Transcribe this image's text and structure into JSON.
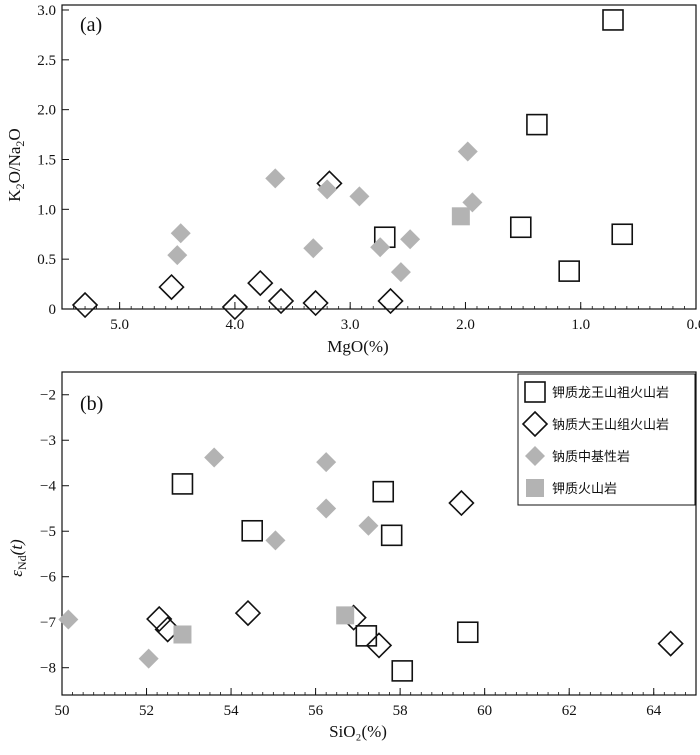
{
  "chart_data": [
    {
      "type": "scatter",
      "panel_label": "(a)",
      "xlabel": "MgO(%)",
      "ylabel": "K2O/Na2O",
      "xlim": [
        5.5,
        0.0
      ],
      "ylim": [
        0,
        3.05
      ],
      "x_reversed": true,
      "xticks": [
        5.0,
        4.0,
        3.0,
        2.0,
        1.0,
        0.0
      ],
      "xtick_labels": [
        "5.0",
        "4.0",
        "3.0",
        "2.0",
        "1.0",
        "0.0"
      ],
      "yticks": [
        0,
        0.5,
        1.0,
        1.5,
        2.0,
        2.5,
        3.0
      ],
      "ytick_labels": [
        "0",
        "0.5",
        "1.0",
        "1.5",
        "2.0",
        "2.5",
        "3.0"
      ],
      "series": [
        {
          "name": "钾质龙王山祖火山岩",
          "marker": "open-square",
          "points": [
            [
              0.72,
              2.9
            ],
            [
              1.38,
              1.85
            ],
            [
              0.64,
              0.75
            ],
            [
              1.52,
              0.82
            ],
            [
              2.7,
              0.72
            ],
            [
              1.1,
              0.38
            ]
          ]
        },
        {
          "name": "钠质大王山组火山岩",
          "marker": "open-diamond",
          "points": [
            [
              5.3,
              0.04
            ],
            [
              4.55,
              0.22
            ],
            [
              4.0,
              0.02
            ],
            [
              3.78,
              0.26
            ],
            [
              3.6,
              0.08
            ],
            [
              3.3,
              0.06
            ],
            [
              3.18,
              1.26
            ],
            [
              2.65,
              0.08
            ]
          ]
        },
        {
          "name": "钠质中基性岩",
          "marker": "gray-diamond",
          "points": [
            [
              4.47,
              0.76
            ],
            [
              4.5,
              0.54
            ],
            [
              3.65,
              1.31
            ],
            [
              3.2,
              1.2
            ],
            [
              3.32,
              0.61
            ],
            [
              2.92,
              1.13
            ],
            [
              2.74,
              0.62
            ],
            [
              2.48,
              0.7
            ],
            [
              2.56,
              0.37
            ],
            [
              1.98,
              1.58
            ],
            [
              1.94,
              1.07
            ]
          ]
        },
        {
          "name": "钾质火山岩",
          "marker": "gray-square",
          "points": [
            [
              2.04,
              0.93
            ]
          ]
        }
      ]
    },
    {
      "type": "scatter",
      "panel_label": "(b)",
      "xlabel": "SiO₂(%)",
      "ylabel_main": "ε",
      "ylabel_sub": "Nd",
      "ylabel_suffix": "(t)",
      "xlim": [
        50,
        65
      ],
      "ylim": [
        -8.6,
        -1.5
      ],
      "xticks": [
        50,
        52,
        54,
        56,
        58,
        60,
        62,
        64
      ],
      "xtick_labels": [
        "50",
        "52",
        "54",
        "56",
        "58",
        "60",
        "62",
        "64"
      ],
      "yticks": [
        -2,
        -3,
        -4,
        -5,
        -6,
        -7,
        -8
      ],
      "ytick_labels": [
        "−2",
        "−3",
        "−4",
        "−5",
        "−6",
        "−7",
        "−8"
      ],
      "legend_position": "top-right",
      "series": [
        {
          "name": "钾质龙王山祖火山岩",
          "marker": "open-square",
          "points": [
            [
              52.85,
              -3.96
            ],
            [
              54.5,
              -4.99
            ],
            [
              57.6,
              -4.13
            ],
            [
              57.8,
              -5.09
            ],
            [
              57.2,
              -7.3
            ],
            [
              59.6,
              -7.22
            ],
            [
              58.05,
              -8.07
            ]
          ]
        },
        {
          "name": "钠质大王山组火山岩",
          "marker": "open-diamond",
          "points": [
            [
              52.3,
              -6.93
            ],
            [
              52.5,
              -7.16
            ],
            [
              54.4,
              -6.8
            ],
            [
              56.9,
              -6.9
            ],
            [
              57.5,
              -7.51
            ],
            [
              59.45,
              -4.38
            ],
            [
              64.4,
              -7.47
            ]
          ]
        },
        {
          "name": "钠质中基性岩",
          "marker": "gray-diamond",
          "points": [
            [
              50.15,
              -6.94
            ],
            [
              52.05,
              -7.8
            ],
            [
              53.6,
              -3.38
            ],
            [
              55.05,
              -5.2
            ],
            [
              56.25,
              -3.48
            ],
            [
              56.25,
              -4.5
            ],
            [
              57.25,
              -4.88
            ]
          ]
        },
        {
          "name": "钾质火山岩",
          "marker": "gray-square",
          "points": [
            [
              52.85,
              -7.27
            ],
            [
              56.7,
              -6.85
            ]
          ]
        }
      ]
    }
  ],
  "colors": {
    "gray": "#b3b3b3",
    "ink": "#111111"
  }
}
